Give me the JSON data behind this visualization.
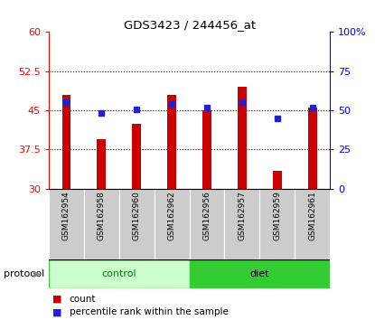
{
  "title": "GDS3423 / 244456_at",
  "samples": [
    "GSM162954",
    "GSM162958",
    "GSM162960",
    "GSM162962",
    "GSM162956",
    "GSM162957",
    "GSM162959",
    "GSM162961"
  ],
  "bar_values": [
    48.0,
    39.5,
    42.5,
    48.0,
    45.0,
    49.5,
    33.5,
    45.5
  ],
  "bar_base": 30,
  "blue_left_values": [
    46.5,
    44.5,
    45.2,
    46.2,
    45.5,
    46.5,
    43.5,
    45.5
  ],
  "ylim_left": [
    30,
    60
  ],
  "ylim_right": [
    0,
    100
  ],
  "yticks_left": [
    30,
    37.5,
    45,
    52.5,
    60
  ],
  "yticks_right": [
    0,
    25,
    50,
    75,
    100
  ],
  "ytick_labels_left": [
    "30",
    "37.5",
    "45",
    "52.5",
    "60"
  ],
  "ytick_labels_right": [
    "0",
    "25",
    "50",
    "75",
    "100%"
  ],
  "bar_color": "#cc0000",
  "blue_color": "#2222cc",
  "control_color_light": "#ccffcc",
  "control_color_dark": "#44cc44",
  "diet_color": "#33cc33",
  "label_bg_color": "#cccccc",
  "legend_count": "count",
  "legend_percentile": "percentile rank within the sample",
  "protocol_label": "protocol",
  "group_labels": [
    "control",
    "diet"
  ],
  "bar_width": 0.25,
  "grid_lines": [
    37.5,
    45.0,
    52.5
  ],
  "n_control": 4,
  "n_diet": 4
}
